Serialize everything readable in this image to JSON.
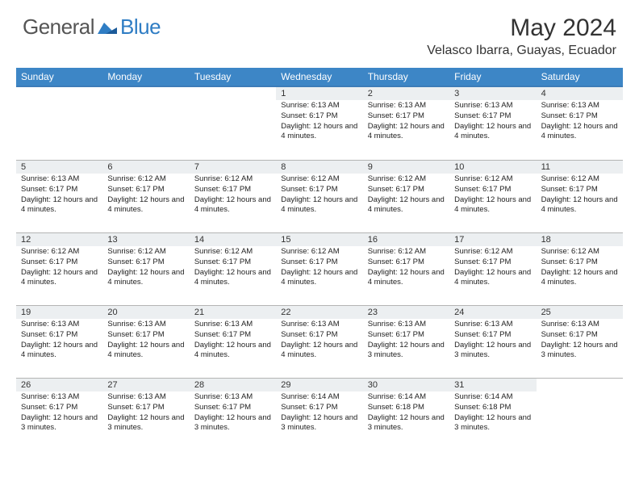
{
  "logo": {
    "general": "General",
    "blue": "Blue"
  },
  "title": "May 2024",
  "location": "Velasco Ibarra, Guayas, Ecuador",
  "colors": {
    "header_bg": "#3d86c6",
    "header_border": "#3d7cb8",
    "daynum_bg": "#eceff1",
    "cell_border": "#b4b4b4",
    "logo_blue": "#2f7dc4"
  },
  "weekdays": [
    "Sunday",
    "Monday",
    "Tuesday",
    "Wednesday",
    "Thursday",
    "Friday",
    "Saturday"
  ],
  "days": [
    {
      "n": "",
      "sr": "",
      "ss": "",
      "d": ""
    },
    {
      "n": "",
      "sr": "",
      "ss": "",
      "d": ""
    },
    {
      "n": "",
      "sr": "",
      "ss": "",
      "d": ""
    },
    {
      "n": "1",
      "sr": "6:13 AM",
      "ss": "6:17 PM",
      "d": "12 hours and 4 minutes."
    },
    {
      "n": "2",
      "sr": "6:13 AM",
      "ss": "6:17 PM",
      "d": "12 hours and 4 minutes."
    },
    {
      "n": "3",
      "sr": "6:13 AM",
      "ss": "6:17 PM",
      "d": "12 hours and 4 minutes."
    },
    {
      "n": "4",
      "sr": "6:13 AM",
      "ss": "6:17 PM",
      "d": "12 hours and 4 minutes."
    },
    {
      "n": "5",
      "sr": "6:13 AM",
      "ss": "6:17 PM",
      "d": "12 hours and 4 minutes."
    },
    {
      "n": "6",
      "sr": "6:12 AM",
      "ss": "6:17 PM",
      "d": "12 hours and 4 minutes."
    },
    {
      "n": "7",
      "sr": "6:12 AM",
      "ss": "6:17 PM",
      "d": "12 hours and 4 minutes."
    },
    {
      "n": "8",
      "sr": "6:12 AM",
      "ss": "6:17 PM",
      "d": "12 hours and 4 minutes."
    },
    {
      "n": "9",
      "sr": "6:12 AM",
      "ss": "6:17 PM",
      "d": "12 hours and 4 minutes."
    },
    {
      "n": "10",
      "sr": "6:12 AM",
      "ss": "6:17 PM",
      "d": "12 hours and 4 minutes."
    },
    {
      "n": "11",
      "sr": "6:12 AM",
      "ss": "6:17 PM",
      "d": "12 hours and 4 minutes."
    },
    {
      "n": "12",
      "sr": "6:12 AM",
      "ss": "6:17 PM",
      "d": "12 hours and 4 minutes."
    },
    {
      "n": "13",
      "sr": "6:12 AM",
      "ss": "6:17 PM",
      "d": "12 hours and 4 minutes."
    },
    {
      "n": "14",
      "sr": "6:12 AM",
      "ss": "6:17 PM",
      "d": "12 hours and 4 minutes."
    },
    {
      "n": "15",
      "sr": "6:12 AM",
      "ss": "6:17 PM",
      "d": "12 hours and 4 minutes."
    },
    {
      "n": "16",
      "sr": "6:12 AM",
      "ss": "6:17 PM",
      "d": "12 hours and 4 minutes."
    },
    {
      "n": "17",
      "sr": "6:12 AM",
      "ss": "6:17 PM",
      "d": "12 hours and 4 minutes."
    },
    {
      "n": "18",
      "sr": "6:12 AM",
      "ss": "6:17 PM",
      "d": "12 hours and 4 minutes."
    },
    {
      "n": "19",
      "sr": "6:13 AM",
      "ss": "6:17 PM",
      "d": "12 hours and 4 minutes."
    },
    {
      "n": "20",
      "sr": "6:13 AM",
      "ss": "6:17 PM",
      "d": "12 hours and 4 minutes."
    },
    {
      "n": "21",
      "sr": "6:13 AM",
      "ss": "6:17 PM",
      "d": "12 hours and 4 minutes."
    },
    {
      "n": "22",
      "sr": "6:13 AM",
      "ss": "6:17 PM",
      "d": "12 hours and 4 minutes."
    },
    {
      "n": "23",
      "sr": "6:13 AM",
      "ss": "6:17 PM",
      "d": "12 hours and 3 minutes."
    },
    {
      "n": "24",
      "sr": "6:13 AM",
      "ss": "6:17 PM",
      "d": "12 hours and 3 minutes."
    },
    {
      "n": "25",
      "sr": "6:13 AM",
      "ss": "6:17 PM",
      "d": "12 hours and 3 minutes."
    },
    {
      "n": "26",
      "sr": "6:13 AM",
      "ss": "6:17 PM",
      "d": "12 hours and 3 minutes."
    },
    {
      "n": "27",
      "sr": "6:13 AM",
      "ss": "6:17 PM",
      "d": "12 hours and 3 minutes."
    },
    {
      "n": "28",
      "sr": "6:13 AM",
      "ss": "6:17 PM",
      "d": "12 hours and 3 minutes."
    },
    {
      "n": "29",
      "sr": "6:14 AM",
      "ss": "6:17 PM",
      "d": "12 hours and 3 minutes."
    },
    {
      "n": "30",
      "sr": "6:14 AM",
      "ss": "6:18 PM",
      "d": "12 hours and 3 minutes."
    },
    {
      "n": "31",
      "sr": "6:14 AM",
      "ss": "6:18 PM",
      "d": "12 hours and 3 minutes."
    },
    {
      "n": "",
      "sr": "",
      "ss": "",
      "d": ""
    }
  ],
  "labels": {
    "sunrise": "Sunrise:",
    "sunset": "Sunset:",
    "daylight": "Daylight:"
  }
}
